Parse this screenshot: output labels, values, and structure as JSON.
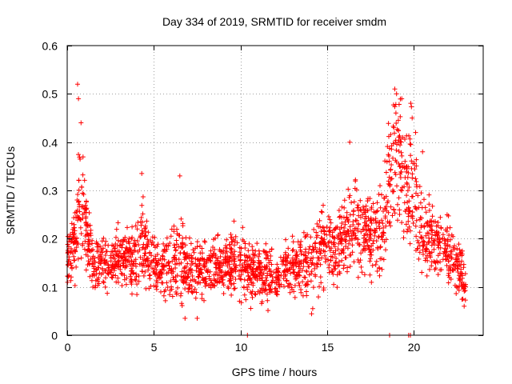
{
  "chart_data": {
    "type": "scatter",
    "title": "Day 334 of 2019, SRMTID for receiver smdm",
    "xlabel": "GPS time / hours",
    "ylabel": "SRMTID / TECUs",
    "xlim": [
      0,
      24
    ],
    "ylim": [
      0,
      0.6
    ],
    "xticks": [
      0,
      5,
      10,
      15,
      20
    ],
    "yticks": [
      0,
      0.1,
      0.2,
      0.3,
      0.4,
      0.5,
      0.6
    ],
    "xtick_labels": [
      "0",
      "5",
      "10",
      "15",
      "20"
    ],
    "ytick_labels": [
      "0",
      "0.1",
      "0.2",
      "0.3",
      "0.4",
      "0.5",
      "0.6"
    ],
    "grid": true,
    "marker": "+",
    "point_color": "#ff0000",
    "grid_color": "#a0a0a0",
    "envelope": {
      "x": [
        0,
        0.5,
        0.7,
        0.9,
        1.2,
        1.5,
        2,
        3,
        4,
        4.3,
        4.6,
        5,
        6,
        6.6,
        7,
        8,
        9,
        10,
        10.5,
        11,
        12,
        12.5,
        13,
        14,
        14.5,
        15,
        15.5,
        16,
        16.5,
        17,
        17.5,
        18,
        18.5,
        18.8,
        19,
        19.3,
        19.6,
        19.9,
        20.2,
        20.6,
        21,
        21.5,
        22,
        22.5,
        23
      ],
      "mean": [
        0.15,
        0.2,
        0.3,
        0.26,
        0.2,
        0.15,
        0.15,
        0.16,
        0.16,
        0.2,
        0.17,
        0.15,
        0.14,
        0.15,
        0.14,
        0.14,
        0.15,
        0.15,
        0.13,
        0.13,
        0.12,
        0.13,
        0.14,
        0.15,
        0.17,
        0.2,
        0.18,
        0.2,
        0.22,
        0.22,
        0.21,
        0.22,
        0.28,
        0.35,
        0.38,
        0.33,
        0.3,
        0.32,
        0.27,
        0.2,
        0.2,
        0.19,
        0.17,
        0.15,
        0.1
      ],
      "spread": [
        0.04,
        0.05,
        0.09,
        0.08,
        0.05,
        0.04,
        0.04,
        0.04,
        0.05,
        0.07,
        0.05,
        0.04,
        0.05,
        0.06,
        0.04,
        0.04,
        0.04,
        0.05,
        0.04,
        0.04,
        0.04,
        0.04,
        0.04,
        0.05,
        0.06,
        0.06,
        0.05,
        0.06,
        0.07,
        0.06,
        0.06,
        0.07,
        0.09,
        0.1,
        0.1,
        0.09,
        0.08,
        0.09,
        0.08,
        0.07,
        0.06,
        0.05,
        0.05,
        0.04,
        0.03
      ]
    },
    "peaks": [
      {
        "x": 0.6,
        "y": 0.52
      },
      {
        "x": 0.65,
        "y": 0.49
      },
      {
        "x": 0.8,
        "y": 0.44
      },
      {
        "x": 4.3,
        "y": 0.335
      },
      {
        "x": 6.5,
        "y": 0.33
      },
      {
        "x": 16.3,
        "y": 0.4
      },
      {
        "x": 18.9,
        "y": 0.51
      },
      {
        "x": 19.0,
        "y": 0.5
      },
      {
        "x": 19.3,
        "y": 0.49
      },
      {
        "x": 19.9,
        "y": 0.45
      },
      {
        "x": 20.1,
        "y": 0.42
      },
      {
        "x": 20.5,
        "y": 0.38
      }
    ],
    "dips": [
      {
        "x": 6.8,
        "y": 0.035
      },
      {
        "x": 7.5,
        "y": 0.035
      },
      {
        "x": 10.4,
        "y": 0.0
      },
      {
        "x": 18.6,
        "y": 0.0
      },
      {
        "x": 19.7,
        "y": 0.0
      },
      {
        "x": 19.8,
        "y": 0.0
      },
      {
        "x": 22.9,
        "y": 0.06
      }
    ],
    "n_points": 2200
  }
}
